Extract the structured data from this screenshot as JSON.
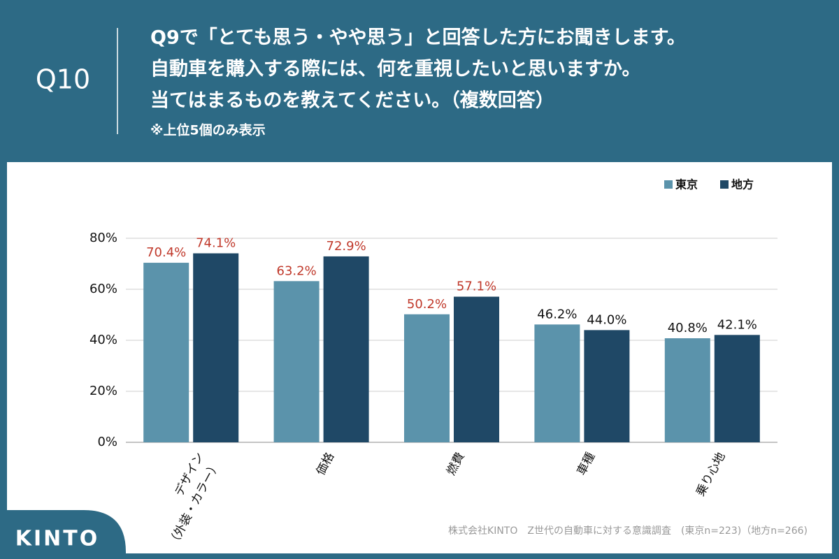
{
  "header": {
    "question_number": "Q10",
    "lines": [
      "Q9で「とても思う・やや思う」と回答した方にお聞きします。",
      "自動車を購入する際には、何を重視したいと思いますか。",
      "当てはまるものを教えてください。（複数回答）"
    ],
    "note": "※上位5個のみ表示"
  },
  "chart_data": {
    "type": "bar",
    "categories": [
      "デザイン\n（外装・カラー）",
      "価格",
      "燃費",
      "車種",
      "乗り心地"
    ],
    "series": [
      {
        "name": "東京",
        "color": "#5b93ab",
        "values": [
          70.4,
          63.2,
          50.2,
          46.2,
          40.8
        ],
        "value_labels": [
          "70.4%",
          "63.2%",
          "50.2%",
          "46.2%",
          "40.8%"
        ]
      },
      {
        "name": "地方",
        "color": "#1f4866",
        "values": [
          74.1,
          72.9,
          57.1,
          44.0,
          42.1
        ],
        "value_labels": [
          "74.1%",
          "72.9%",
          "57.1%",
          "44.0%",
          "42.1%"
        ]
      }
    ],
    "value_label_colors": [
      "#c0392b",
      "#c0392b",
      "#c0392b",
      "#111111",
      "#111111"
    ],
    "ylim": [
      0,
      80
    ],
    "yticks": [
      {
        "value": 0,
        "label": "0%"
      },
      {
        "value": 20,
        "label": "20%"
      },
      {
        "value": 40,
        "label": "40%"
      },
      {
        "value": 60,
        "label": "60%"
      },
      {
        "value": 80,
        "label": "80%"
      }
    ],
    "grid": true,
    "legend": "top-right"
  },
  "source": "株式会社KINTO　Z世代の自動車に対する意識調査　(東京n=223)（地方n=266)",
  "logo": "KINTO"
}
